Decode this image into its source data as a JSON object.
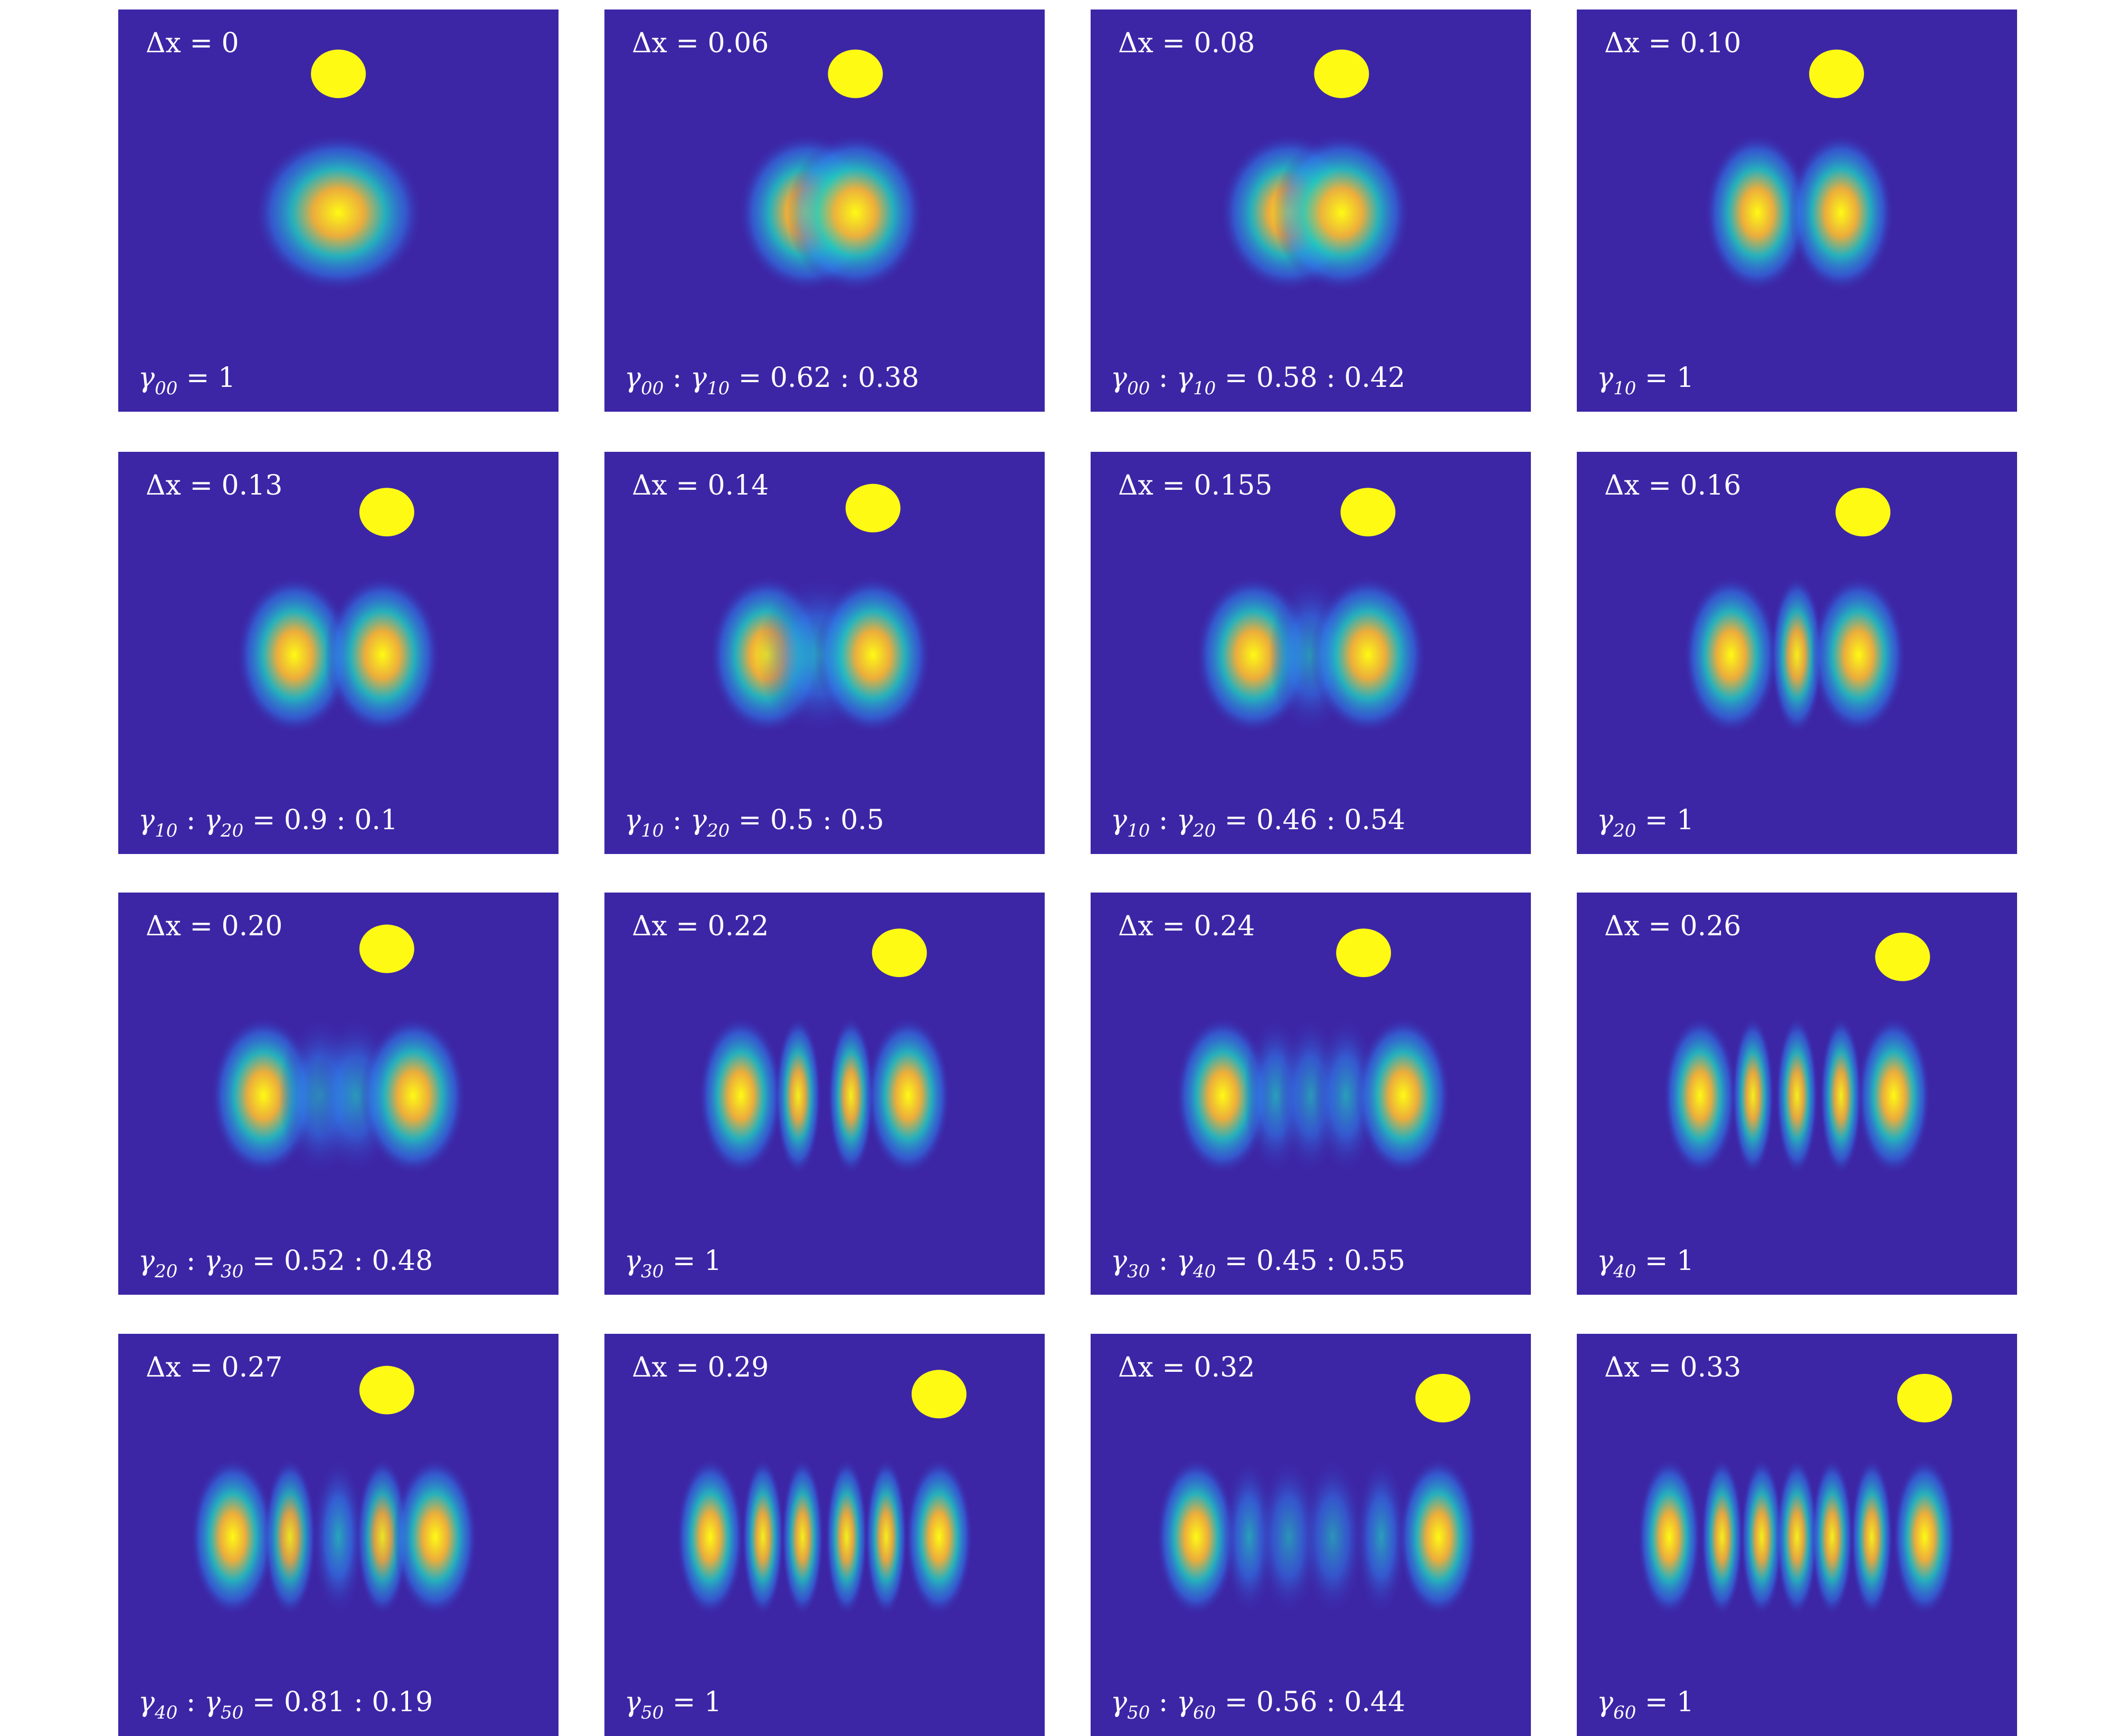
{
  "colors": {
    "background": "#3c26a6",
    "peak": "#fefa14",
    "mid": "#22c9c0",
    "low": "#2f7fee"
  },
  "panels": [
    {
      "dx": "Δx = 0",
      "mix": [
        [
          "00",
          "1"
        ]
      ],
      "dot": [
        0.5,
        0.16
      ],
      "lobes": [
        {
          "x": 0.5,
          "amp": 1,
          "sx": 0.08,
          "merged": false
        }
      ]
    },
    {
      "dx": "Δx = 0.06",
      "mix": [
        [
          "00",
          "0.62"
        ],
        [
          "10",
          "0.38"
        ]
      ],
      "dot": [
        0.57,
        0.16
      ],
      "lobes": [
        {
          "x": 0.46,
          "amp": 0.95,
          "sx": 0.065
        },
        {
          "x": 0.57,
          "amp": 0.95,
          "sx": 0.065
        }
      ]
    },
    {
      "dx": "Δx = 0.08",
      "mix": [
        [
          "00",
          "0.58"
        ],
        [
          "10",
          "0.42"
        ]
      ],
      "dot": [
        0.57,
        0.16
      ],
      "lobes": [
        {
          "x": 0.45,
          "amp": 0.95,
          "sx": 0.065
        },
        {
          "x": 0.57,
          "amp": 0.95,
          "sx": 0.065
        }
      ]
    },
    {
      "dx": "Δx = 0.10",
      "mix": [
        [
          "10",
          "1"
        ]
      ],
      "dot": [
        0.59,
        0.16
      ],
      "lobes": [
        {
          "x": 0.41,
          "amp": 0.95,
          "sx": 0.05
        },
        {
          "x": 0.6,
          "amp": 0.95,
          "sx": 0.05
        }
      ]
    },
    {
      "dx": "Δx = 0.13",
      "mix": [
        [
          "10",
          "0.9"
        ],
        [
          "20",
          "0.1"
        ]
      ],
      "dot": [
        0.61,
        0.15
      ],
      "lobes": [
        {
          "x": 0.4,
          "amp": 0.95,
          "sx": 0.055
        },
        {
          "x": 0.6,
          "amp": 0.95,
          "sx": 0.055
        }
      ]
    },
    {
      "dx": "Δx = 0.14",
      "mix": [
        [
          "10",
          "0.5"
        ],
        [
          "20",
          "0.5"
        ]
      ],
      "dot": [
        0.61,
        0.14
      ],
      "lobes": [
        {
          "x": 0.37,
          "amp": 0.9,
          "sx": 0.055
        },
        {
          "x": 0.49,
          "amp": 0.45,
          "sx": 0.06
        },
        {
          "x": 0.61,
          "amp": 0.9,
          "sx": 0.055
        }
      ]
    },
    {
      "dx": "Δx = 0.155",
      "mix": [
        [
          "10",
          "0.46"
        ],
        [
          "20",
          "0.54"
        ]
      ],
      "dot": [
        0.63,
        0.15
      ],
      "lobes": [
        {
          "x": 0.37,
          "amp": 0.9,
          "sx": 0.055
        },
        {
          "x": 0.5,
          "amp": 0.45,
          "sx": 0.04
        },
        {
          "x": 0.63,
          "amp": 0.9,
          "sx": 0.055
        }
      ]
    },
    {
      "dx": "Δx = 0.16",
      "mix": [
        [
          "20",
          "1"
        ]
      ],
      "dot": [
        0.65,
        0.15
      ],
      "lobes": [
        {
          "x": 0.35,
          "amp": 0.9,
          "sx": 0.045
        },
        {
          "x": 0.5,
          "amp": 0.8,
          "sx": 0.025
        },
        {
          "x": 0.64,
          "amp": 0.9,
          "sx": 0.045
        }
      ]
    },
    {
      "dx": "Δx = 0.20",
      "mix": [
        [
          "20",
          "0.52"
        ],
        [
          "30",
          "0.48"
        ]
      ],
      "dot": [
        0.61,
        0.14
      ],
      "lobes": [
        {
          "x": 0.33,
          "amp": 0.9,
          "sx": 0.05
        },
        {
          "x": 0.46,
          "amp": 0.45,
          "sx": 0.04
        },
        {
          "x": 0.54,
          "amp": 0.45,
          "sx": 0.04
        },
        {
          "x": 0.67,
          "amp": 0.9,
          "sx": 0.05
        }
      ]
    },
    {
      "dx": "Δx = 0.22",
      "mix": [
        [
          "30",
          "1"
        ]
      ],
      "dot": [
        0.67,
        0.15
      ],
      "lobes": [
        {
          "x": 0.31,
          "amp": 0.9,
          "sx": 0.04
        },
        {
          "x": 0.44,
          "amp": 0.8,
          "sx": 0.022
        },
        {
          "x": 0.56,
          "amp": 0.8,
          "sx": 0.022
        },
        {
          "x": 0.69,
          "amp": 0.9,
          "sx": 0.04
        }
      ]
    },
    {
      "dx": "Δx = 0.24",
      "mix": [
        [
          "30",
          "0.45"
        ],
        [
          "40",
          "0.55"
        ]
      ],
      "dot": [
        0.62,
        0.15
      ],
      "lobes": [
        {
          "x": 0.3,
          "amp": 0.9,
          "sx": 0.045
        },
        {
          "x": 0.42,
          "amp": 0.55,
          "sx": 0.03
        },
        {
          "x": 0.5,
          "amp": 0.45,
          "sx": 0.03
        },
        {
          "x": 0.58,
          "amp": 0.55,
          "sx": 0.03
        },
        {
          "x": 0.71,
          "amp": 0.9,
          "sx": 0.045
        }
      ]
    },
    {
      "dx": "Δx = 0.26",
      "mix": [
        [
          "40",
          "1"
        ]
      ],
      "dot": [
        0.74,
        0.16
      ],
      "lobes": [
        {
          "x": 0.28,
          "amp": 0.9,
          "sx": 0.035
        },
        {
          "x": 0.4,
          "amp": 0.8,
          "sx": 0.02
        },
        {
          "x": 0.5,
          "amp": 0.8,
          "sx": 0.02
        },
        {
          "x": 0.6,
          "amp": 0.8,
          "sx": 0.02
        },
        {
          "x": 0.72,
          "amp": 0.9,
          "sx": 0.035
        }
      ]
    },
    {
      "dx": "Δx = 0.27",
      "mix": [
        [
          "40",
          "0.81"
        ],
        [
          "50",
          "0.19"
        ]
      ],
      "dot": [
        0.61,
        0.14
      ],
      "lobes": [
        {
          "x": 0.26,
          "amp": 0.9,
          "sx": 0.04
        },
        {
          "x": 0.39,
          "amp": 0.7,
          "sx": 0.025
        },
        {
          "x": 0.5,
          "amp": 0.65,
          "sx": 0.025
        },
        {
          "x": 0.6,
          "amp": 0.7,
          "sx": 0.025
        },
        {
          "x": 0.72,
          "amp": 0.9,
          "sx": 0.04
        }
      ]
    },
    {
      "dx": "Δx = 0.29",
      "mix": [
        [
          "50",
          "1"
        ]
      ],
      "dot": [
        0.76,
        0.15
      ],
      "lobes": [
        {
          "x": 0.24,
          "amp": 0.9,
          "sx": 0.032
        },
        {
          "x": 0.36,
          "amp": 0.8,
          "sx": 0.018
        },
        {
          "x": 0.45,
          "amp": 0.8,
          "sx": 0.018
        },
        {
          "x": 0.55,
          "amp": 0.8,
          "sx": 0.018
        },
        {
          "x": 0.64,
          "amp": 0.8,
          "sx": 0.018
        },
        {
          "x": 0.76,
          "amp": 0.9,
          "sx": 0.032
        }
      ]
    },
    {
      "dx": "Δx = 0.32",
      "mix": [
        [
          "50",
          "0.56"
        ],
        [
          "60",
          "0.44"
        ]
      ],
      "dot": [
        0.8,
        0.16
      ],
      "lobes": [
        {
          "x": 0.24,
          "amp": 0.9,
          "sx": 0.038
        },
        {
          "x": 0.36,
          "amp": 0.55,
          "sx": 0.025
        },
        {
          "x": 0.45,
          "amp": 0.4,
          "sx": 0.03
        },
        {
          "x": 0.55,
          "amp": 0.4,
          "sx": 0.03
        },
        {
          "x": 0.66,
          "amp": 0.55,
          "sx": 0.025
        },
        {
          "x": 0.79,
          "amp": 0.9,
          "sx": 0.038
        }
      ]
    },
    {
      "dx": "Δx = 0.33",
      "mix": [
        [
          "60",
          "1"
        ]
      ],
      "dot": [
        0.79,
        0.16
      ],
      "lobes": [
        {
          "x": 0.21,
          "amp": 0.9,
          "sx": 0.03
        },
        {
          "x": 0.33,
          "amp": 0.8,
          "sx": 0.016
        },
        {
          "x": 0.42,
          "amp": 0.8,
          "sx": 0.016
        },
        {
          "x": 0.5,
          "amp": 0.8,
          "sx": 0.016
        },
        {
          "x": 0.58,
          "amp": 0.8,
          "sx": 0.016
        },
        {
          "x": 0.67,
          "amp": 0.8,
          "sx": 0.016
        },
        {
          "x": 0.79,
          "amp": 0.9,
          "sx": 0.03
        }
      ]
    }
  ]
}
